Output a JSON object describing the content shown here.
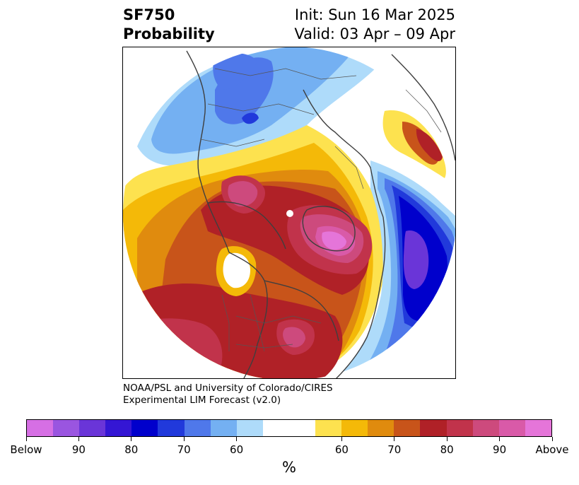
{
  "title": {
    "left_line1": "SF750",
    "left_line2": "Probability",
    "right_line1": "Init: Sun 16 Mar 2025",
    "right_line2": "Valid: 03 Apr – 09 Apr"
  },
  "credit": {
    "line1": "NOAA/PSL and University of Colorado/CIRES",
    "line2": "Experimental LIM Forecast (v2.0)"
  },
  "colorbar": {
    "unit": "%",
    "colors": [
      "#d66fe4",
      "#9a55e0",
      "#6a35d8",
      "#3416d4",
      "#0000cc",
      "#2139db",
      "#4f78ea",
      "#74b0f2",
      "#aedbfa",
      "#ffffff",
      "#fde24f",
      "#f4b908",
      "#e08b0e",
      "#c8541a",
      "#b02127",
      "#c1334b",
      "#cd4a7d",
      "#d95aa8",
      "#e575d9"
    ],
    "tick_labels": [
      "Below",
      "90",
      "80",
      "70",
      "60",
      "60",
      "70",
      "80",
      "90",
      "Above"
    ]
  },
  "map": {
    "projection": "north-polar-stereographic",
    "variable": "SF750 probability",
    "features": [
      "negative-anomaly-north-pacific-asia",
      "positive-anomaly-north-america",
      "positive-anomaly-greenland-arctic",
      "strong-negative-anomaly-europe-atlantic"
    ]
  }
}
